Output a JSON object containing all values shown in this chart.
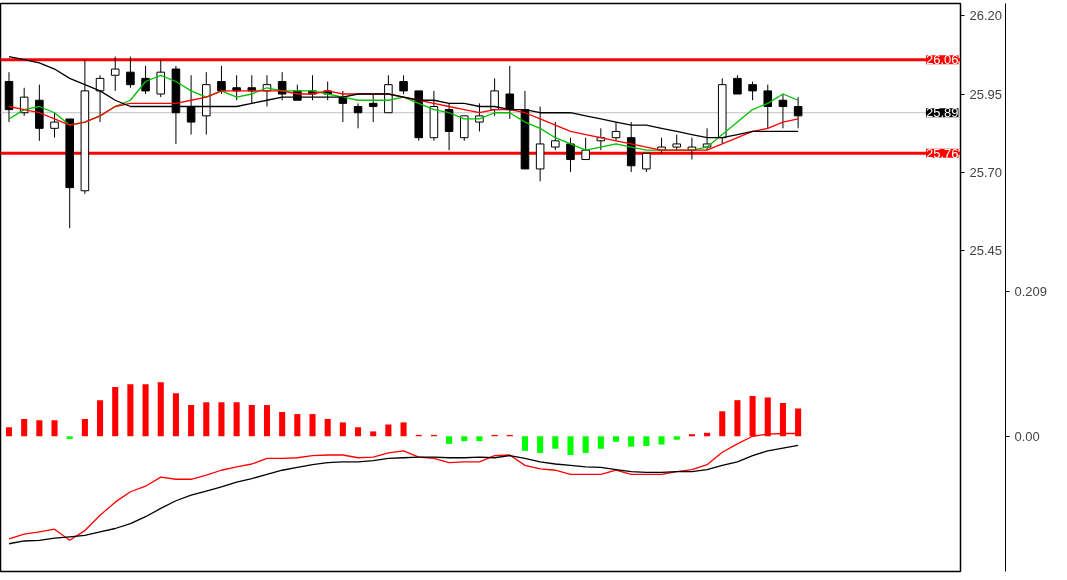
{
  "chart_data": {
    "type": "candlestick",
    "categories": [
      null,
      null,
      null,
      null,
      null,
      null,
      null,
      null,
      null,
      null,
      null,
      null,
      null,
      null,
      null,
      null,
      null,
      null,
      null,
      null,
      null,
      null,
      null,
      null,
      null,
      null,
      null,
      null,
      null,
      null,
      null,
      null,
      null,
      null,
      null,
      null,
      null,
      null,
      null,
      null,
      null,
      null,
      null,
      null,
      null,
      null,
      null,
      null,
      null,
      null,
      null,
      null,
      null
    ],
    "ohlc": [
      [
        25.99,
        26.02,
        25.86,
        25.9
      ],
      [
        25.89,
        25.97,
        25.88,
        25.94
      ],
      [
        25.93,
        25.98,
        25.8,
        25.84
      ],
      [
        25.84,
        25.89,
        25.81,
        25.86
      ],
      [
        25.87,
        25.87,
        25.52,
        25.65
      ],
      [
        25.64,
        26.06,
        25.63,
        25.96
      ],
      [
        25.96,
        26.01,
        25.86,
        26.0
      ],
      [
        26.01,
        26.07,
        25.96,
        26.03
      ],
      [
        26.02,
        26.07,
        25.97,
        25.98
      ],
      [
        26.0,
        26.04,
        25.95,
        25.96
      ],
      [
        25.95,
        26.06,
        25.94,
        26.02
      ],
      [
        26.03,
        26.04,
        25.79,
        25.89
      ],
      [
        25.91,
        26.01,
        25.82,
        25.86
      ],
      [
        25.88,
        26.02,
        25.82,
        25.98
      ],
      [
        25.99,
        26.04,
        25.95,
        25.96
      ],
      [
        25.97,
        26.01,
        25.93,
        25.96
      ],
      [
        25.97,
        26.01,
        25.92,
        25.96
      ],
      [
        25.96,
        26.01,
        25.91,
        25.98
      ],
      [
        25.99,
        26.02,
        25.93,
        25.95
      ],
      [
        25.96,
        25.98,
        25.93,
        25.93
      ],
      [
        25.96,
        26.01,
        25.93,
        25.95
      ],
      [
        25.96,
        25.99,
        25.93,
        25.95
      ],
      [
        25.94,
        25.96,
        25.86,
        25.92
      ],
      [
        25.91,
        25.92,
        25.84,
        25.89
      ],
      [
        25.92,
        25.95,
        25.86,
        25.91
      ],
      [
        25.89,
        26.01,
        25.89,
        25.98
      ],
      [
        25.99,
        26.01,
        25.95,
        25.96
      ],
      [
        25.96,
        25.96,
        25.8,
        25.81
      ],
      [
        25.81,
        25.96,
        25.8,
        25.91
      ],
      [
        25.9,
        25.92,
        25.77,
        25.83
      ],
      [
        25.81,
        25.88,
        25.8,
        25.88
      ],
      [
        25.86,
        25.92,
        25.83,
        25.88
      ],
      [
        25.9,
        26.0,
        25.88,
        25.96
      ],
      [
        25.95,
        26.04,
        25.87,
        25.9
      ],
      [
        25.9,
        25.96,
        25.71,
        25.71
      ],
      [
        25.71,
        25.91,
        25.67,
        25.79
      ],
      [
        25.78,
        25.86,
        25.77,
        25.8
      ],
      [
        25.79,
        25.81,
        25.7,
        25.74
      ],
      [
        25.74,
        25.81,
        25.74,
        25.77
      ],
      [
        25.8,
        25.84,
        25.77,
        25.81
      ],
      [
        25.81,
        25.86,
        25.8,
        25.83
      ],
      [
        25.81,
        25.86,
        25.7,
        25.72
      ],
      [
        25.71,
        25.76,
        25.7,
        25.76
      ],
      [
        25.77,
        25.81,
        25.76,
        25.78
      ],
      [
        25.78,
        25.82,
        25.77,
        25.79
      ],
      [
        25.77,
        25.81,
        25.74,
        25.78
      ],
      [
        25.78,
        25.84,
        25.77,
        25.79
      ],
      [
        25.81,
        26.0,
        25.79,
        25.98
      ],
      [
        26.0,
        26.01,
        25.95,
        25.95
      ],
      [
        25.98,
        25.99,
        25.93,
        25.96
      ],
      [
        25.96,
        25.98,
        25.84,
        25.91
      ],
      [
        25.93,
        25.95,
        25.84,
        25.91
      ],
      [
        25.91,
        25.94,
        25.84,
        25.88
      ]
    ],
    "series": [
      {
        "type": "line",
        "color": "#00c000",
        "values": [
          25.87,
          25.9,
          25.91,
          25.89,
          25.85,
          25.86,
          25.88,
          25.91,
          25.93,
          25.99,
          26.01,
          25.99,
          25.96,
          25.94,
          25.96,
          25.94,
          25.95,
          25.97,
          25.96,
          25.96,
          25.96,
          25.95,
          25.94,
          25.93,
          25.93,
          25.93,
          25.94,
          25.92,
          25.9,
          25.89,
          25.87,
          25.87,
          25.89,
          25.89,
          25.86,
          25.84,
          25.81,
          25.79,
          25.77,
          25.78,
          25.79,
          25.78,
          25.77,
          25.77,
          25.77,
          25.77,
          25.78,
          25.82,
          25.86,
          25.9,
          25.92,
          25.95,
          25.93
        ]
      },
      {
        "type": "line",
        "color": "#ff0000",
        "values": [
          25.91,
          25.9,
          25.89,
          25.87,
          25.85,
          25.86,
          25.88,
          25.91,
          25.92,
          25.92,
          25.92,
          25.92,
          25.93,
          25.94,
          25.96,
          25.96,
          25.96,
          25.96,
          25.96,
          25.95,
          25.95,
          25.96,
          25.95,
          25.95,
          25.95,
          25.95,
          25.94,
          25.93,
          25.92,
          25.91,
          25.9,
          25.89,
          25.9,
          25.9,
          25.89,
          25.87,
          25.85,
          25.83,
          25.82,
          25.81,
          25.8,
          25.79,
          25.78,
          25.77,
          25.77,
          25.77,
          25.77,
          25.79,
          25.81,
          25.83,
          25.84,
          25.86,
          25.87
        ]
      },
      {
        "type": "line",
        "color": "#000000",
        "values": [
          26.07,
          26.06,
          26.05,
          26.03,
          26.0,
          25.98,
          25.96,
          25.93,
          25.91,
          25.91,
          25.91,
          25.91,
          25.91,
          25.91,
          25.91,
          25.91,
          25.92,
          25.93,
          25.94,
          25.94,
          25.94,
          25.94,
          25.94,
          25.95,
          25.95,
          25.95,
          25.94,
          25.93,
          25.93,
          25.92,
          25.92,
          25.91,
          25.91,
          25.9,
          25.9,
          25.89,
          25.89,
          25.89,
          25.88,
          25.87,
          25.86,
          25.85,
          25.85,
          25.84,
          25.83,
          25.82,
          25.81,
          25.81,
          25.82,
          25.83,
          25.83,
          25.83,
          25.83
        ]
      },
      {
        "type": "bar",
        "axis": "y2",
        "colors": [
          "#ff0000",
          "#ff0000",
          "#ff0000",
          "#ff0000",
          "#00ff00",
          "#ff0000",
          "#ff0000",
          "#ff0000",
          "#ff0000",
          "#ff0000",
          "#ff0000",
          "#ff0000",
          "#ff0000",
          "#ff0000",
          "#ff0000",
          "#ff0000",
          "#ff0000",
          "#ff0000",
          "#ff0000",
          "#ff0000",
          "#ff0000",
          "#ff0000",
          "#ff0000",
          "#ff0000",
          "#ff0000",
          "#ff0000",
          "#ff0000",
          "#ff0000",
          "#ff0000",
          "#00ff00",
          "#00ff00",
          "#00ff00",
          "#ff0000",
          "#ff0000",
          "#00ff00",
          "#00ff00",
          "#00ff00",
          "#00ff00",
          "#00ff00",
          "#00ff00",
          "#00ff00",
          "#00ff00",
          "#00ff00",
          "#00ff00",
          "#00ff00",
          "#ff0000",
          "#ff0000",
          "#ff0000",
          "#ff0000",
          "#ff0000",
          "#ff0000",
          "#ff0000",
          "#ff0000"
        ],
        "values": [
          0.013,
          0.025,
          0.023,
          0.023,
          -0.004,
          0.025,
          0.052,
          0.071,
          0.075,
          0.075,
          0.078,
          0.062,
          0.045,
          0.049,
          0.049,
          0.049,
          0.045,
          0.045,
          0.035,
          0.032,
          0.032,
          0.025,
          0.02,
          0.013,
          0.007,
          0.017,
          0.02,
          0.002,
          0.002,
          -0.011,
          -0.007,
          -0.007,
          0.002,
          0.002,
          -0.021,
          -0.024,
          -0.018,
          -0.027,
          -0.024,
          -0.018,
          -0.008,
          -0.015,
          -0.014,
          -0.012,
          -0.005,
          0.003,
          0.005,
          0.036,
          0.052,
          0.058,
          0.056,
          0.048,
          0.04
        ]
      },
      {
        "type": "line",
        "axis": "y2",
        "color": "#ff0000",
        "values": [
          -0.148,
          -0.141,
          -0.138,
          -0.134,
          -0.15,
          -0.136,
          -0.114,
          -0.095,
          -0.08,
          -0.072,
          -0.059,
          -0.062,
          -0.062,
          -0.056,
          -0.049,
          -0.044,
          -0.04,
          -0.032,
          -0.032,
          -0.031,
          -0.028,
          -0.027,
          -0.027,
          -0.031,
          -0.03,
          -0.024,
          -0.021,
          -0.03,
          -0.032,
          -0.038,
          -0.037,
          -0.037,
          -0.028,
          -0.027,
          -0.042,
          -0.047,
          -0.049,
          -0.055,
          -0.055,
          -0.055,
          -0.049,
          -0.055,
          -0.055,
          -0.055,
          -0.051,
          -0.048,
          -0.041,
          -0.023,
          -0.011,
          0.0,
          0.003,
          0.004,
          0.004
        ]
      },
      {
        "type": "line",
        "axis": "y2",
        "color": "#000000",
        "values": [
          -0.155,
          -0.151,
          -0.15,
          -0.147,
          -0.145,
          -0.143,
          -0.138,
          -0.133,
          -0.126,
          -0.116,
          -0.104,
          -0.093,
          -0.085,
          -0.079,
          -0.073,
          -0.066,
          -0.061,
          -0.055,
          -0.049,
          -0.045,
          -0.041,
          -0.038,
          -0.037,
          -0.037,
          -0.035,
          -0.032,
          -0.031,
          -0.03,
          -0.03,
          -0.031,
          -0.031,
          -0.03,
          -0.031,
          -0.028,
          -0.032,
          -0.037,
          -0.04,
          -0.042,
          -0.044,
          -0.045,
          -0.048,
          -0.051,
          -0.052,
          -0.052,
          -0.051,
          -0.051,
          -0.048,
          -0.042,
          -0.037,
          -0.028,
          -0.021,
          -0.017,
          -0.013
        ]
      }
    ],
    "ylim": [
      24.42,
      26.24
    ],
    "yticks": [
      {
        "value": 26.2,
        "label": "26.20"
      },
      25.95,
      {
        "value": 25.7,
        "label": "25.70"
      },
      25.45
    ],
    "y2lim": [
      -0.195,
      0.624
    ],
    "y2ticks": [
      0.209,
      {
        "value": 0,
        "label": "0.00"
      }
    ],
    "ref_lines": [
      {
        "axis": "y",
        "value": 26.06,
        "label": "26.06",
        "color": "#ff0000"
      },
      {
        "axis": "y",
        "value": 25.76,
        "label": "25.76",
        "color": "#ff0000"
      },
      {
        "axis": "y",
        "value": 25.89,
        "label": "25.89",
        "color": "#c0c0c0"
      }
    ],
    "tick_labels": "y"
  }
}
